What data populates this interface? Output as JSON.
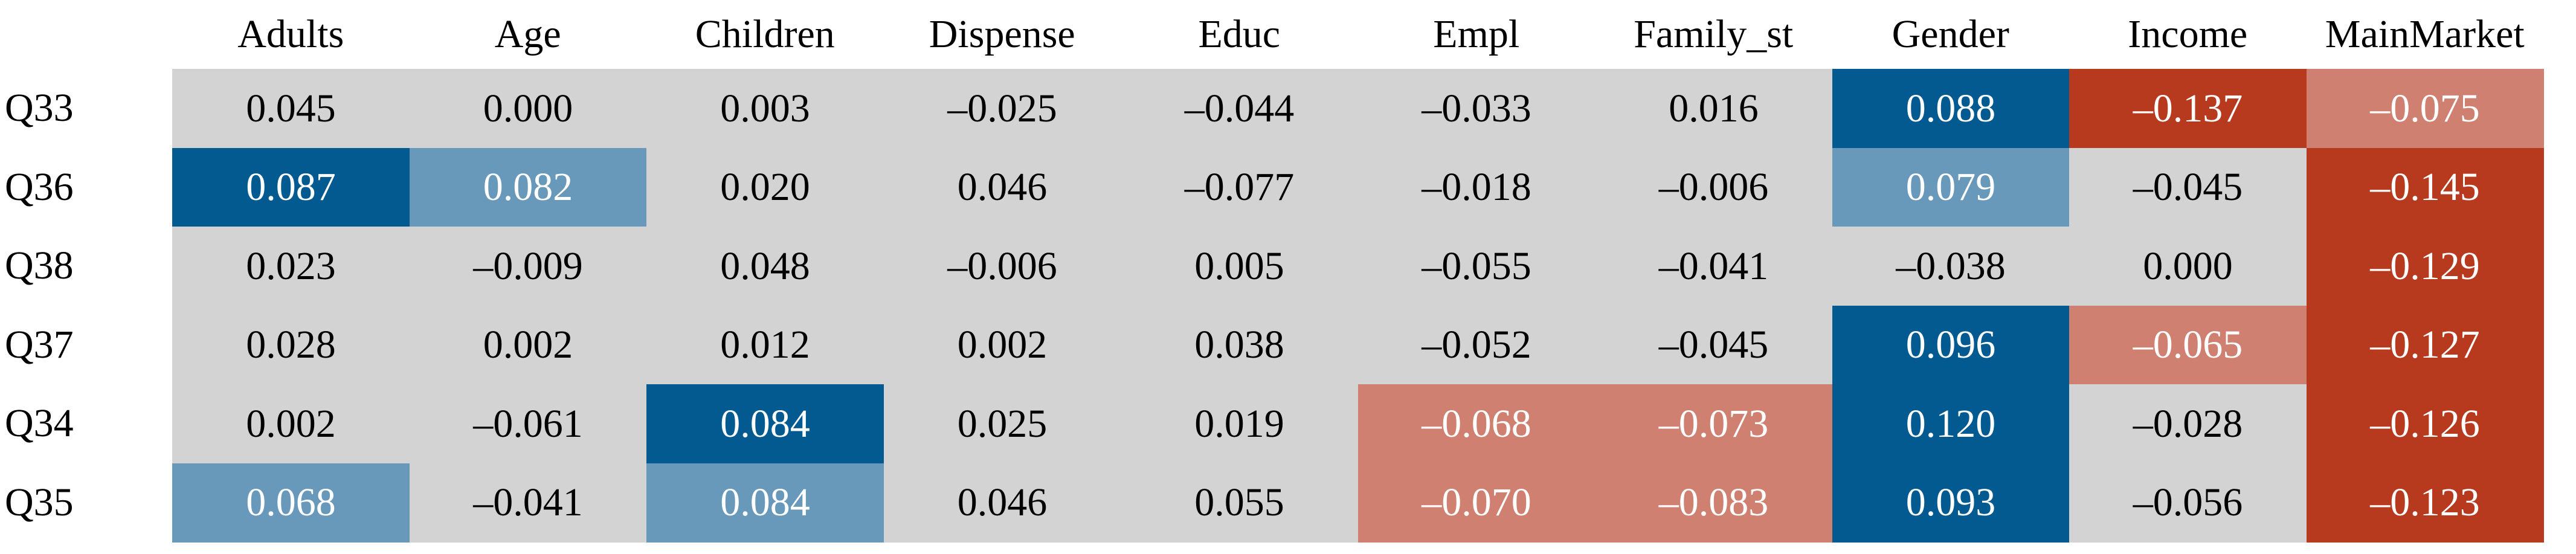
{
  "table": {
    "columns": [
      "Adults",
      "Age",
      "Children",
      "Dispense",
      "Educ",
      "Empl",
      "Family_st",
      "Gender",
      "Income",
      "MainMarket"
    ],
    "rows": [
      {
        "label": "Q33",
        "cells": [
          "0.045",
          "0.000",
          "0.003",
          "–0.025",
          "–0.044",
          "–0.033",
          "0.016",
          "0.088",
          "–0.137",
          "–0.075"
        ],
        "colors": [
          "#d3d3d3",
          "#d3d3d3",
          "#d3d3d3",
          "#d3d3d3",
          "#d3d3d3",
          "#d3d3d3",
          "#d3d3d3",
          "#035a91",
          "#b73a1e",
          "#cf8070"
        ]
      },
      {
        "label": "Q36",
        "cells": [
          "0.087",
          "0.082",
          "0.020",
          "0.046",
          "–0.077",
          "–0.018",
          "–0.006",
          "0.079",
          "–0.045",
          "–0.145"
        ],
        "colors": [
          "#035a91",
          "#6898ba",
          "#d3d3d3",
          "#d3d3d3",
          "#d3d3d3",
          "#d3d3d3",
          "#d3d3d3",
          "#6898ba",
          "#d3d3d3",
          "#b73a1e"
        ]
      },
      {
        "label": "Q38",
        "cells": [
          "0.023",
          "–0.009",
          "0.048",
          "–0.006",
          "0.005",
          "–0.055",
          "–0.041",
          "–0.038",
          "0.000",
          "–0.129"
        ],
        "colors": [
          "#d3d3d3",
          "#d3d3d3",
          "#d3d3d3",
          "#d3d3d3",
          "#d3d3d3",
          "#d3d3d3",
          "#d3d3d3",
          "#d3d3d3",
          "#d3d3d3",
          "#b73a1e"
        ]
      },
      {
        "label": "Q37",
        "cells": [
          "0.028",
          "0.002",
          "0.012",
          "0.002",
          "0.038",
          "–0.052",
          "–0.045",
          "0.096",
          "–0.065",
          "–0.127"
        ],
        "colors": [
          "#d3d3d3",
          "#d3d3d3",
          "#d3d3d3",
          "#d3d3d3",
          "#d3d3d3",
          "#d3d3d3",
          "#d3d3d3",
          "#035a91",
          "#cf8070",
          "#b73a1e"
        ]
      },
      {
        "label": "Q34",
        "cells": [
          "0.002",
          "–0.061",
          "0.084",
          "0.025",
          "0.019",
          "–0.068",
          "–0.073",
          "0.120",
          "–0.028",
          "–0.126"
        ],
        "colors": [
          "#d3d3d3",
          "#d3d3d3",
          "#035a91",
          "#d3d3d3",
          "#d3d3d3",
          "#cf8070",
          "#cf8070",
          "#035a91",
          "#d3d3d3",
          "#b73a1e"
        ]
      },
      {
        "label": "Q35",
        "cells": [
          "0.068",
          "–0.041",
          "0.084",
          "0.046",
          "0.055",
          "–0.070",
          "–0.083",
          "0.093",
          "–0.056",
          "–0.123"
        ],
        "colors": [
          "#6898ba",
          "#d3d3d3",
          "#6898ba",
          "#d3d3d3",
          "#d3d3d3",
          "#cf8070",
          "#cf8070",
          "#035a91",
          "#d3d3d3",
          "#b73a1e"
        ]
      }
    ]
  }
}
